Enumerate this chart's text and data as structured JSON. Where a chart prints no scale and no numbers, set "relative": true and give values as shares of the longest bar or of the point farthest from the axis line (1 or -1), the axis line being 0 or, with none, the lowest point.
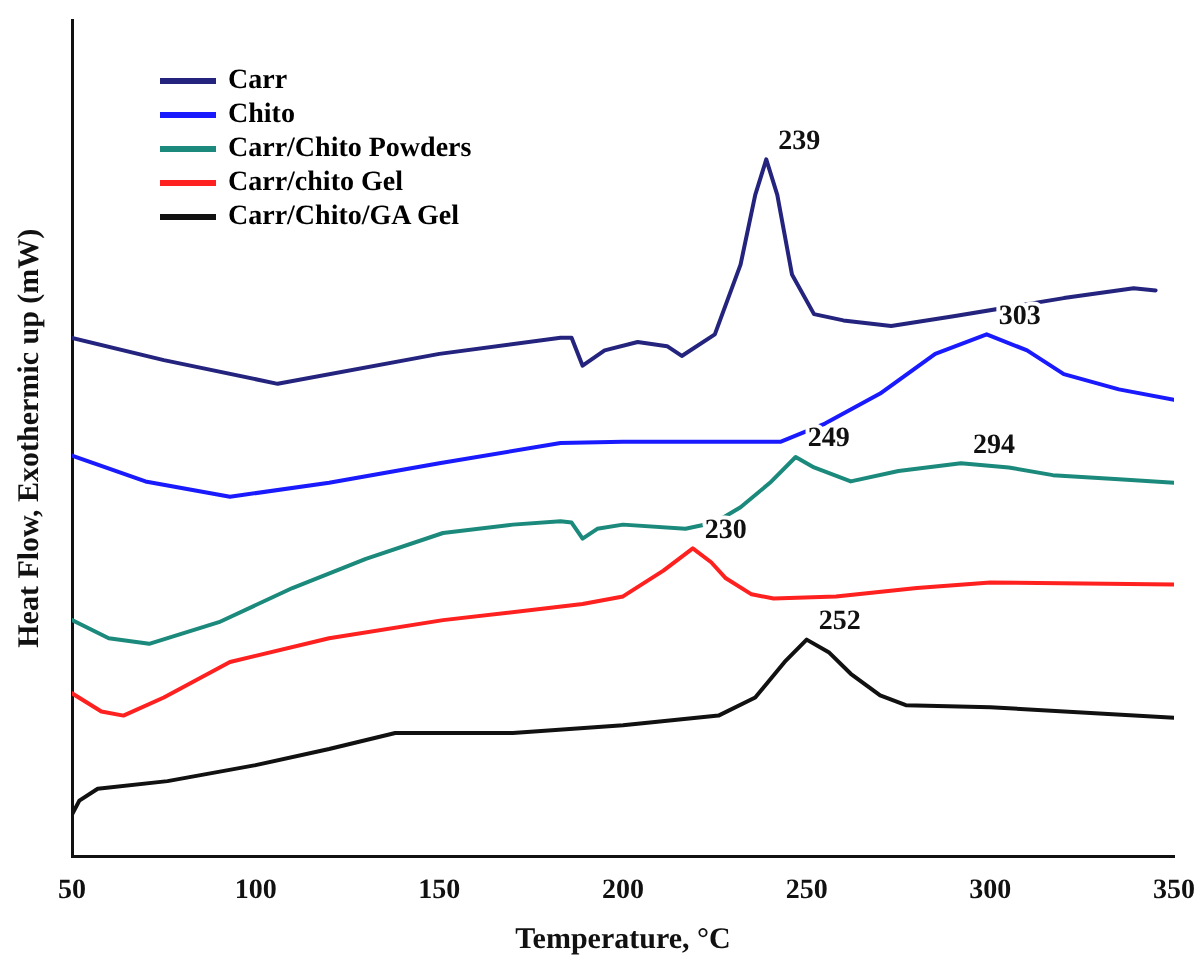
{
  "chart_data": {
    "type": "line",
    "relative": true,
    "xlabel": "Temperature, °C",
    "ylabel": "Heat Flow, Exothermic up (mW)",
    "xlim": [
      50,
      350
    ],
    "xticks": [
      50,
      100,
      150,
      200,
      250,
      300,
      350
    ],
    "grid": false,
    "legend": "top left",
    "marker": "none",
    "line_style": "solid",
    "series": [
      {
        "name": "Carr",
        "color": "#24247e",
        "x": [
          50,
          75,
          106,
          150,
          183,
          186,
          189,
          195,
          204,
          212,
          216,
          225,
          232,
          236,
          239,
          242,
          246,
          252,
          260,
          273,
          290,
          320,
          339,
          345
        ],
        "values": [
          0.744,
          0.712,
          0.678,
          0.721,
          0.744,
          0.744,
          0.704,
          0.726,
          0.738,
          0.732,
          0.718,
          0.749,
          0.849,
          0.949,
          1,
          0.949,
          0.835,
          0.778,
          0.769,
          0.761,
          0.775,
          0.801,
          0.815,
          0.812
        ]
      },
      {
        "name": "Chito",
        "color": "#1a1aff",
        "x": [
          50,
          70,
          93,
          120,
          150,
          183,
          200,
          243,
          255,
          270,
          285,
          299,
          310,
          320,
          335,
          350
        ],
        "values": [
          0.575,
          0.538,
          0.516,
          0.536,
          0.564,
          0.593,
          0.595,
          0.595,
          0.621,
          0.664,
          0.721,
          0.749,
          0.726,
          0.692,
          0.67,
          0.655
        ]
      },
      {
        "name": "Carr/Chito Powders",
        "color": "#1b8a7c",
        "x": [
          50,
          60,
          71,
          90,
          110,
          130,
          151,
          170,
          183,
          186,
          189,
          193,
          200,
          217,
          225,
          232,
          240,
          247,
          252,
          262,
          275,
          292,
          305,
          317,
          335,
          350
        ],
        "values": [
          0.339,
          0.313,
          0.305,
          0.336,
          0.385,
          0.427,
          0.464,
          0.476,
          0.481,
          0.479,
          0.456,
          0.47,
          0.476,
          0.47,
          0.479,
          0.501,
          0.536,
          0.573,
          0.558,
          0.538,
          0.553,
          0.564,
          0.558,
          0.547,
          0.541,
          0.536
        ]
      },
      {
        "name": "Carr/chito Gel",
        "color": "#ff2020",
        "x": [
          50,
          58,
          64,
          75,
          93,
          120,
          151,
          189,
          200,
          211,
          219,
          224,
          228,
          235,
          241,
          258,
          280,
          300,
          350
        ],
        "values": [
          0.234,
          0.208,
          0.202,
          0.228,
          0.279,
          0.313,
          0.339,
          0.362,
          0.373,
          0.41,
          0.442,
          0.422,
          0.399,
          0.376,
          0.37,
          0.373,
          0.385,
          0.393,
          0.39
        ]
      },
      {
        "name": "Carr/Chito/GA Gel",
        "color": "#111111",
        "x": [
          50,
          52,
          57,
          76,
          100,
          120,
          138,
          170,
          200,
          226,
          236,
          244,
          250,
          256,
          262,
          270,
          277,
          300,
          350
        ],
        "values": [
          0.06,
          0.08,
          0.097,
          0.108,
          0.131,
          0.154,
          0.177,
          0.177,
          0.188,
          0.202,
          0.228,
          0.279,
          0.311,
          0.293,
          0.262,
          0.231,
          0.217,
          0.214,
          0.199
        ]
      }
    ],
    "annotations": [
      {
        "text": "239",
        "x": 239,
        "y": 1
      },
      {
        "text": "303",
        "x": 299,
        "y": 0.749
      },
      {
        "text": "249",
        "x": 247,
        "y": 0.573
      },
      {
        "text": "294",
        "x": 292,
        "y": 0.564
      },
      {
        "text": "230",
        "x": 219,
        "y": 0.442
      },
      {
        "text": "252",
        "x": 250,
        "y": 0.311
      }
    ]
  }
}
